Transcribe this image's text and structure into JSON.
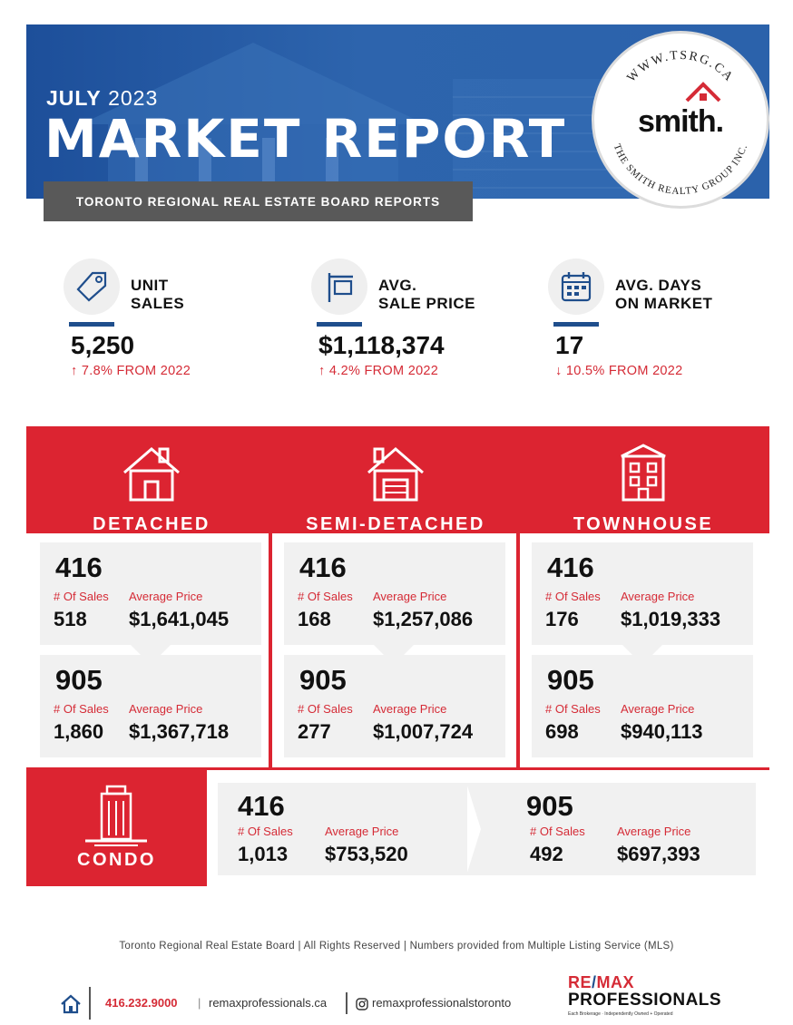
{
  "header": {
    "month": "JULY",
    "year": "2023",
    "title_part1": "MARKET REP",
    "title_o": "O",
    "title_part2": "RT",
    "subtitle": "TORONTO REGIONAL REAL ESTATE BOARD REPORTS",
    "seal_top_text": "WWW.TSRG.CA",
    "seal_bottom_text": "THE SMITH REALTY GROUP INC.",
    "seal_logo": "smith."
  },
  "stats": [
    {
      "icon": "price-tag-icon",
      "label_line1": "UNIT",
      "label_line2": "SALES",
      "value": "5,250",
      "change": "7.8% FROM 2022",
      "direction": "up"
    },
    {
      "icon": "for-sale-sign-icon",
      "label_line1": "AVG.",
      "label_line2": "SALE PRICE",
      "value": "$1,118,374",
      "change": "4.2% FROM 2022",
      "direction": "up"
    },
    {
      "icon": "calendar-icon",
      "label_line1": "AVG. DAYS",
      "label_line2": "ON MARKET",
      "value": "17",
      "change": "10.5% FROM 2022",
      "direction": "down"
    }
  ],
  "labels": {
    "sales": "# Of Sales",
    "price": "Average Price"
  },
  "categories": [
    {
      "name": "DETACHED",
      "icon": "detached-house-icon",
      "areas": [
        {
          "code": "416",
          "sales": "518",
          "price": "$1,641,045"
        },
        {
          "code": "905",
          "sales": "1,860",
          "price": "$1,367,718"
        }
      ]
    },
    {
      "name": "SEMI-DETACHED",
      "icon": "semi-detached-house-icon",
      "areas": [
        {
          "code": "416",
          "sales": "168",
          "price": "$1,257,086"
        },
        {
          "code": "905",
          "sales": "277",
          "price": "$1,007,724"
        }
      ]
    },
    {
      "name": "TOWNHOUSE",
      "icon": "townhouse-icon",
      "areas": [
        {
          "code": "416",
          "sales": "176",
          "price": "$1,019,333"
        },
        {
          "code": "905",
          "sales": "698",
          "price": "$940,113"
        }
      ]
    }
  ],
  "condo": {
    "name": "CONDO",
    "icon": "condo-tower-icon",
    "areas": [
      {
        "code": "416",
        "sales": "1,013",
        "price": "$753,520"
      },
      {
        "code": "905",
        "sales": "492",
        "price": "$697,393"
      }
    ]
  },
  "footer": {
    "disclaimer": "Toronto Regional Real Estate Board | All Rights Reserved | Numbers provided from Multiple Listing Service (MLS)",
    "phone": "416.232.9000",
    "website": "remaxprofessionals.ca",
    "instagram": "remaxprofessionalstoronto",
    "brand_line1_a": "RE",
    "brand_line1_slash": "/",
    "brand_line1_b": "MAX",
    "brand_line2": "PROFESSIONALS",
    "brand_tagline": "Each Brokerage · Independently Owned + Operated"
  },
  "colors": {
    "brand_red": "#dc2431",
    "brand_blue": "#1f4e8c",
    "card_gray": "#f1f1f1"
  }
}
